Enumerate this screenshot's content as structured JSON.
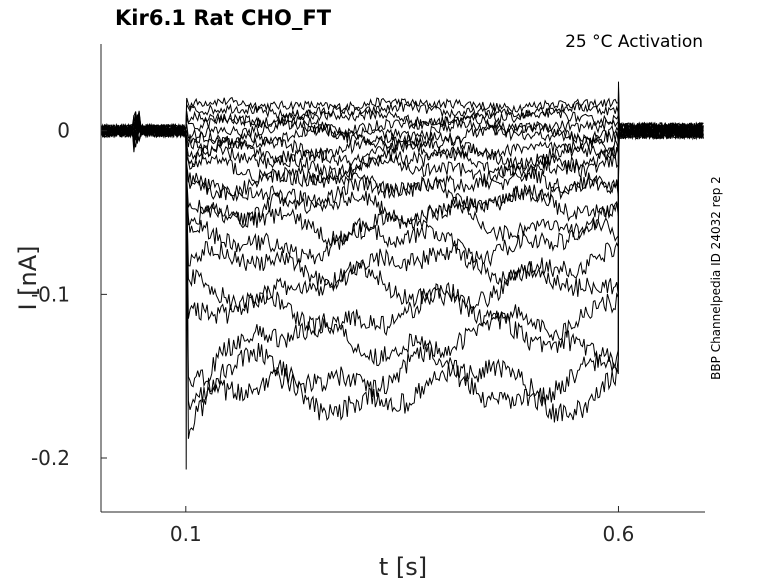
{
  "chart_data": {
    "type": "line",
    "title": "Kir6.1  Rat  CHO_FT",
    "subtitle": "25 °C  Activation",
    "side_label": "BBP Channelpedia ID 24032 rep 2",
    "xlabel": "t [s]",
    "ylabel": "I [nA]",
    "xlim": [
      0.002,
      0.7
    ],
    "ylim": [
      -0.233,
      0.053
    ],
    "x_ticks": [
      0.1,
      0.6
    ],
    "x_tick_labels": [
      "0.1",
      "0.6"
    ],
    "y_ticks": [
      0,
      -0.1,
      -0.2
    ],
    "y_tick_labels": [
      "0",
      "-0.1",
      "-0.2"
    ],
    "grid": false,
    "legend": "none",
    "stimulus": {
      "onset": 0.1,
      "offset": 0.6,
      "baseline": 0.0
    },
    "series_levels": [
      0.016,
      0.012,
      0.008,
      0.004,
      0.0,
      -0.004,
      -0.009,
      -0.014,
      -0.019,
      -0.025,
      -0.031,
      -0.038,
      -0.046,
      -0.056,
      -0.068,
      -0.082,
      -0.096,
      -0.112,
      -0.128,
      -0.148,
      -0.162
    ],
    "onset_spike": {
      "min": -0.207,
      "max": 0.02
    },
    "offset_spike": {
      "max": 0.03
    },
    "noise_amplitude": 0.0035
  }
}
